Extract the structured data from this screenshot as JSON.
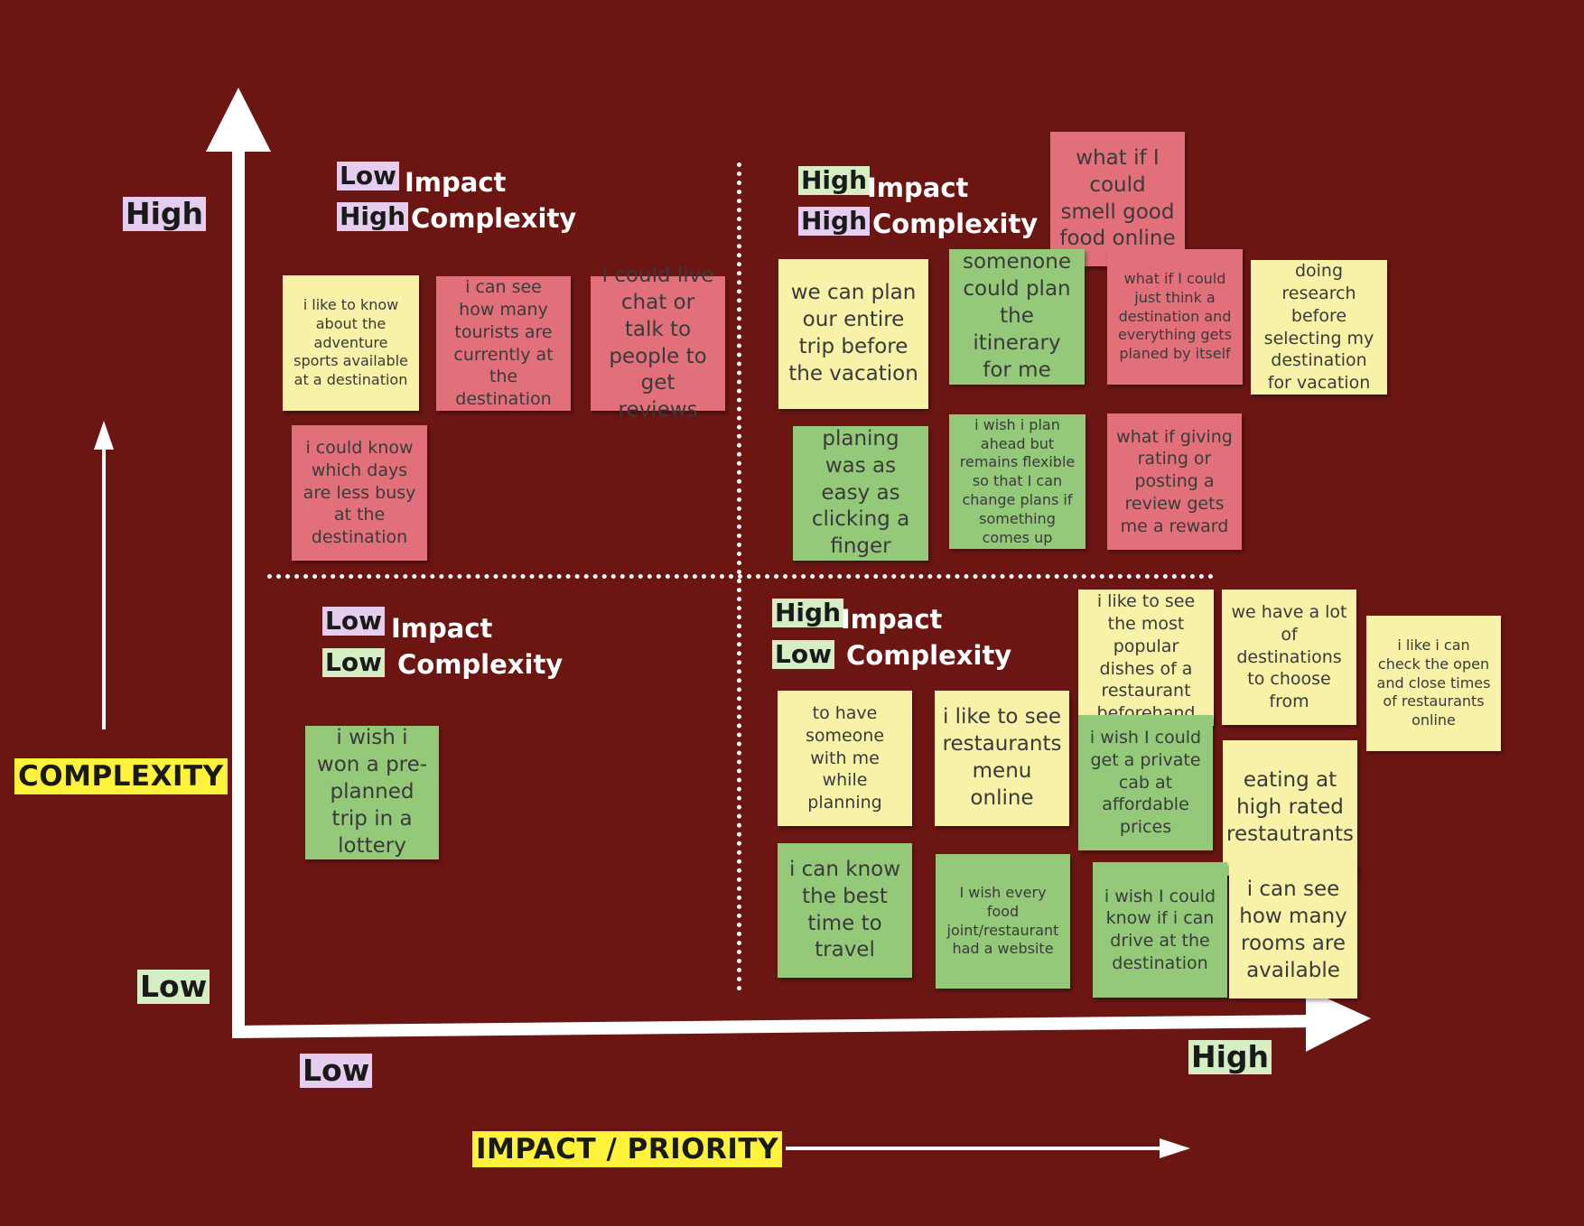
{
  "axes": {
    "y_title": "COMPLEXITY",
    "x_title": "IMPACT / PRIORITY",
    "y_high": "High",
    "y_low": "Low",
    "x_low": "Low",
    "x_high": "High"
  },
  "quadrants": {
    "top_left": {
      "impact_level": "Low",
      "impact_word": "Impact",
      "complexity_level": "High",
      "complexity_word": "Complexity"
    },
    "top_right": {
      "impact_level": "High",
      "impact_word": "Impact",
      "complexity_level": "High",
      "complexity_word": "Complexity"
    },
    "bottom_left": {
      "impact_level": "Low",
      "impact_word": "Impact",
      "complexity_level": "Low",
      "complexity_word": "Complexity"
    },
    "bottom_right": {
      "impact_level": "High",
      "impact_word": "Impact",
      "complexity_level": "Low",
      "complexity_word": "Complexity"
    }
  },
  "notes": {
    "n1": "i like to know about the adventure sports available at a destination",
    "n2": "i can see how many tourists are currently at the destination",
    "n3": "i could live chat or talk to people to get reviews",
    "n4": "i could know which days are less busy at the destination",
    "n5": "we can plan our entire trip before the vacation",
    "n6": "somenone could plan the itinerary for me",
    "n7": "what if I could smell good food online",
    "n8": "what if I could just think a destination and everything gets planed by itself",
    "n9": "doing research before selecting my destination for vacation",
    "n10": "planing was as easy as clicking a finger",
    "n11": "i wish i plan ahead but remains flexible so that I can change plans if something comes up",
    "n12": "what if giving rating or posting a review gets me a reward",
    "n13": "i wish i won a pre-planned trip in a lottery",
    "n14": "i like to see the most popular dishes of a restaurant beforehand",
    "n15": "we have a lot of destinations to choose from",
    "n16": "i like i can check the open and close times of restaurants online",
    "n17": "to have someone with me while planning",
    "n18": "i like to see restaurants menu online",
    "n19": "i wish I could get a private cab at affordable prices",
    "n20": "eating at high rated restautrants",
    "n21": "i can know the best time to travel",
    "n22": "I wish every food joint/restaurant had a website",
    "n23": "i wish I could know if i can drive at the destination",
    "n24": "i can see how many rooms are available"
  }
}
